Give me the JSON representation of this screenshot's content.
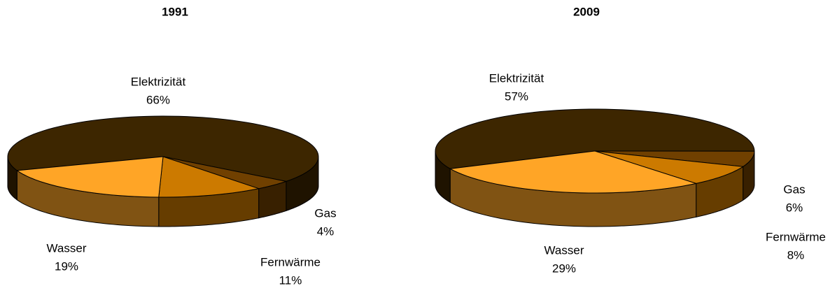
{
  "chart_data": [
    {
      "type": "pie",
      "title": "1991",
      "categories": [
        "Elektrizität",
        "Gas",
        "Fernwärme",
        "Wasser"
      ],
      "values": [
        66,
        4,
        11,
        19
      ],
      "value_labels": [
        "66%",
        "4%",
        "11%",
        "19%"
      ],
      "colors": [
        "#3d2600",
        "#704000",
        "#cc7a00",
        "#ffa526"
      ]
    },
    {
      "type": "pie",
      "title": "2009",
      "categories": [
        "Elektrizität",
        "Gas",
        "Fernwärme",
        "Wasser"
      ],
      "values": [
        57,
        6,
        8,
        29
      ],
      "value_labels": [
        "57%",
        "6%",
        "8%",
        "29%"
      ],
      "colors": [
        "#3d2600",
        "#704000",
        "#cc7a00",
        "#ffa526"
      ]
    }
  ]
}
